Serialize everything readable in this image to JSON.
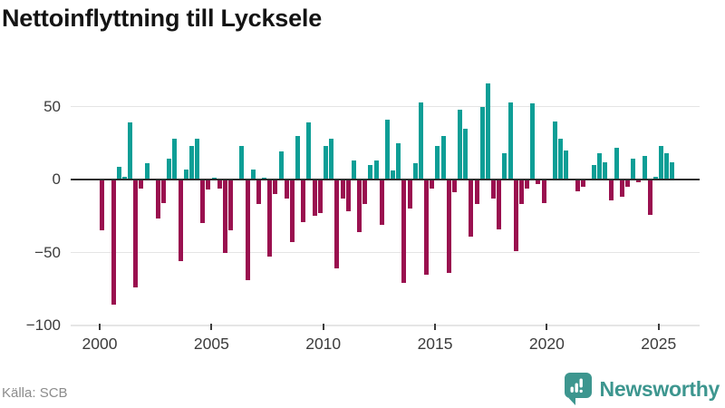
{
  "title": "Nettoinflyttning till Lycksele",
  "source": "Källa: SCB",
  "branding": {
    "name": "Newsworthy",
    "icon": "bar-chart-speech-bubble-icon"
  },
  "colors": {
    "positive_bar": "#0d9e96",
    "negative_bar": "#9a104f",
    "brand": "#3d968f",
    "gridline": "#e5e5e5",
    "zero_line": "#2e2e2e",
    "axis_text": "#3c3c3c",
    "source_text": "#8c8c8c"
  },
  "chart_data": {
    "type": "bar",
    "title": "Nettoinflyttning till Lycksele",
    "xlabel": "",
    "ylabel": "",
    "frequency": "quarterly",
    "period_start": "2000 Q1",
    "period_end": "2025 Q3",
    "ylim": [
      -100,
      70
    ],
    "grid": true,
    "y_ticks": [
      50,
      0,
      -50,
      -100
    ],
    "y_tick_labels": [
      "50",
      "0",
      "−50",
      "−100"
    ],
    "x_ticks": [
      2000,
      2005,
      2010,
      2015,
      2020,
      2025
    ],
    "x_tick_labels": [
      "2000",
      "2005",
      "2010",
      "2015",
      "2020",
      "2025"
    ],
    "values": [
      -35,
      0,
      -86,
      9,
      2,
      39,
      -74,
      -6,
      11,
      0,
      -27,
      -16,
      14,
      28,
      -56,
      7,
      23,
      28,
      -30,
      -7,
      1,
      -6,
      -50,
      -35,
      0,
      23,
      -69,
      7,
      -17,
      1,
      -53,
      -10,
      19,
      -13,
      -43,
      30,
      -29,
      39,
      -25,
      -23,
      23,
      28,
      -61,
      -13,
      -22,
      13,
      -36,
      -17,
      10,
      13,
      -31,
      41,
      6,
      25,
      -71,
      -20,
      11,
      53,
      -65,
      -6,
      23,
      30,
      -64,
      -9,
      48,
      35,
      -39,
      -17,
      50,
      66,
      -13,
      -34,
      18,
      53,
      -49,
      -17,
      -6,
      52,
      -3,
      -16,
      0,
      40,
      28,
      20,
      0,
      -8,
      -5,
      0,
      10,
      18,
      12,
      -14,
      22,
      -12,
      -5,
      14,
      -2,
      16,
      -24,
      2,
      23,
      18,
      12
    ]
  }
}
